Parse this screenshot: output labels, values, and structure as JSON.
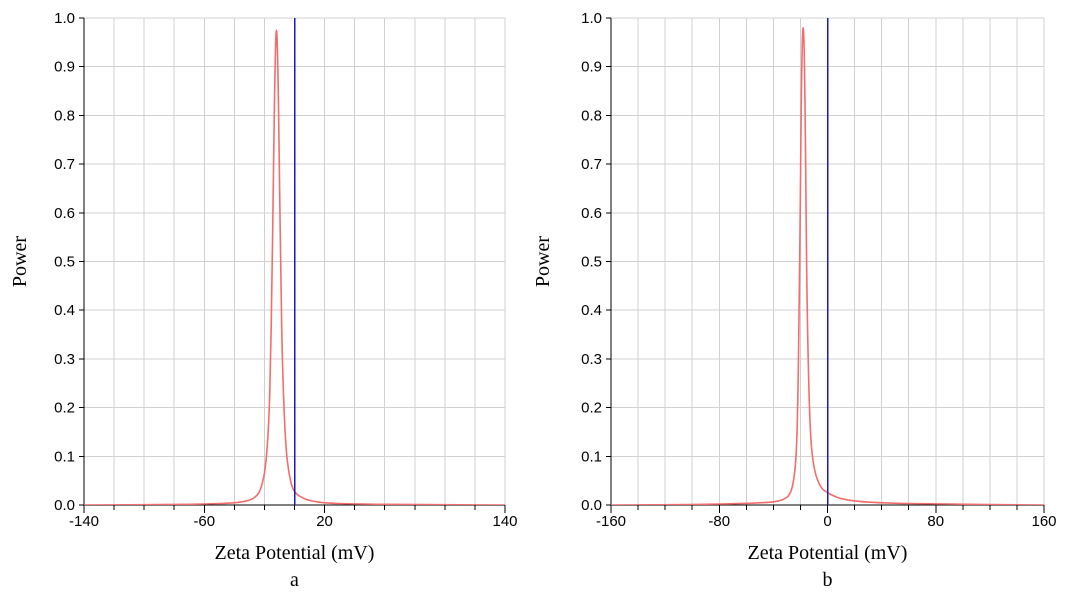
{
  "chart_data": [
    {
      "type": "line",
      "panel_label": "a",
      "xlabel": "Zeta Potential (mV)",
      "ylabel": "Power",
      "xlim": [
        -140,
        140
      ],
      "ylim": [
        0,
        1
      ],
      "x_tick_labels": [
        {
          "value": -140,
          "label": "-140"
        },
        {
          "value": -60,
          "label": "-60"
        },
        {
          "value": 20,
          "label": "20"
        },
        {
          "value": 140,
          "label": "140"
        }
      ],
      "x_minor_step": 20,
      "y_ticks": [
        {
          "value": 0.0,
          "label": "0.0"
        },
        {
          "value": 0.1,
          "label": "0.1"
        },
        {
          "value": 0.2,
          "label": "0.2"
        },
        {
          "value": 0.3,
          "label": "0.3"
        },
        {
          "value": 0.4,
          "label": "0.4"
        },
        {
          "value": 0.5,
          "label": "0.5"
        },
        {
          "value": 0.6,
          "label": "0.6"
        },
        {
          "value": 0.7,
          "label": "0.7"
        },
        {
          "value": 0.8,
          "label": "0.8"
        },
        {
          "value": 0.9,
          "label": "0.9"
        },
        {
          "value": 1.0,
          "label": "1.0"
        }
      ],
      "grid": true,
      "reference_line_x": 0,
      "colors": {
        "curve": "#f26d6d",
        "reference": "#1a1ab8"
      },
      "series": [
        {
          "x": [
            -140,
            -80,
            -60,
            -40,
            -30,
            -25,
            -22,
            -19,
            -17,
            -16,
            -15,
            -14,
            -13,
            -12,
            -11,
            -10,
            -9,
            -8,
            -6,
            -3,
            0,
            5,
            10,
            20,
            40,
            80,
            140
          ],
          "values": [
            0.0,
            0.001,
            0.002,
            0.004,
            0.009,
            0.018,
            0.035,
            0.08,
            0.17,
            0.28,
            0.45,
            0.68,
            0.9,
            1.0,
            0.9,
            0.68,
            0.45,
            0.28,
            0.12,
            0.05,
            0.025,
            0.015,
            0.009,
            0.004,
            0.002,
            0.001,
            0.0
          ]
        }
      ]
    },
    {
      "type": "line",
      "panel_label": "b",
      "xlabel": "Zeta Potential (mV)",
      "ylabel": "Power",
      "xlim": [
        -160,
        160
      ],
      "ylim": [
        0,
        1
      ],
      "x_tick_labels": [
        {
          "value": -160,
          "label": "-160"
        },
        {
          "value": -80,
          "label": "-80"
        },
        {
          "value": 0,
          "label": "0"
        },
        {
          "value": 80,
          "label": "80"
        },
        {
          "value": 160,
          "label": "160"
        }
      ],
      "x_minor_step": 20,
      "y_ticks": [
        {
          "value": 0.0,
          "label": "0.0"
        },
        {
          "value": 0.1,
          "label": "0.1"
        },
        {
          "value": 0.2,
          "label": "0.2"
        },
        {
          "value": 0.3,
          "label": "0.3"
        },
        {
          "value": 0.4,
          "label": "0.4"
        },
        {
          "value": 0.5,
          "label": "0.5"
        },
        {
          "value": 0.6,
          "label": "0.6"
        },
        {
          "value": 0.7,
          "label": "0.7"
        },
        {
          "value": 0.8,
          "label": "0.8"
        },
        {
          "value": 0.9,
          "label": "0.9"
        },
        {
          "value": 1.0,
          "label": "1.0"
        }
      ],
      "grid": true,
      "reference_line_x": 0,
      "colors": {
        "curve": "#f26d6d",
        "reference": "#1a1ab8"
      },
      "series": [
        {
          "x": [
            -160,
            -100,
            -60,
            -40,
            -35,
            -30,
            -28,
            -26,
            -24,
            -23,
            -22,
            -21,
            -20,
            -19,
            -18,
            -17,
            -16,
            -15,
            -13,
            -10,
            -5,
            0,
            5,
            10,
            20,
            40,
            80,
            160
          ],
          "values": [
            0.0,
            0.001,
            0.003,
            0.006,
            0.009,
            0.015,
            0.022,
            0.035,
            0.07,
            0.11,
            0.2,
            0.38,
            0.66,
            0.92,
            1.0,
            0.92,
            0.66,
            0.38,
            0.15,
            0.07,
            0.035,
            0.025,
            0.018,
            0.013,
            0.008,
            0.004,
            0.002,
            0.0
          ]
        }
      ]
    }
  ]
}
